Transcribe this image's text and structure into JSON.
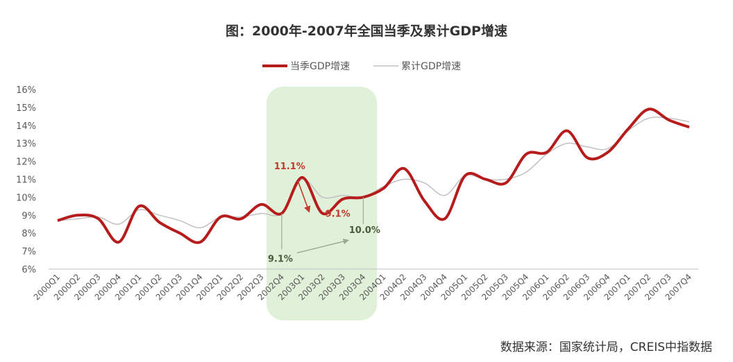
{
  "chart_data": {
    "type": "line",
    "title": "图：2000年-2007年全国当季及累计GDP增速",
    "categories": [
      "2000Q1",
      "2000Q2",
      "2000Q3",
      "2000Q4",
      "2001Q1",
      "2001Q2",
      "2001Q3",
      "2001Q4",
      "2002Q1",
      "2002Q2",
      "2002Q3",
      "2002Q4",
      "2003Q1",
      "2003Q2",
      "2003Q3",
      "2003Q4",
      "2004Q1",
      "2004Q2",
      "2004Q3",
      "2004Q4",
      "2005Q1",
      "2005Q2",
      "2005Q3",
      "2005Q4",
      "2006Q1",
      "2006Q2",
      "2006Q3",
      "2006Q4",
      "2007Q1",
      "2007Q2",
      "2007Q3",
      "2007Q4"
    ],
    "y_ticks": [
      "6%",
      "7%",
      "8%",
      "9%",
      "10%",
      "11%",
      "12%",
      "13%",
      "14%",
      "15%",
      "16%"
    ],
    "ylim": [
      6,
      16
    ],
    "legend_position": "top-center",
    "series": [
      {
        "name": "当季GDP增速",
        "color": "#b71c1c",
        "values": [
          8.7,
          9.0,
          8.8,
          7.5,
          9.5,
          8.6,
          8.0,
          7.5,
          8.9,
          8.8,
          9.6,
          9.1,
          11.1,
          9.1,
          9.9,
          10.0,
          10.5,
          11.6,
          9.8,
          8.8,
          11.2,
          11.0,
          10.8,
          12.4,
          12.5,
          13.7,
          12.2,
          12.5,
          13.8,
          14.9,
          14.3,
          13.9
        ]
      },
      {
        "name": "累计GDP增速",
        "color": "#c0c0c0",
        "values": [
          8.7,
          8.8,
          8.9,
          8.5,
          9.3,
          9.0,
          8.7,
          8.3,
          8.9,
          8.9,
          9.1,
          9.1,
          11.0,
          10.0,
          10.1,
          10.0,
          10.6,
          11.0,
          10.8,
          10.1,
          11.2,
          11.0,
          11.0,
          11.4,
          12.4,
          13.0,
          12.8,
          12.7,
          13.7,
          14.4,
          14.4,
          14.2
        ]
      }
    ],
    "annotations": [
      {
        "text": "11.1%",
        "color": "#c0392b"
      },
      {
        "text": "9.1%",
        "color": "#c0392b"
      },
      {
        "text": "9.1%",
        "color": "#4a5a3a"
      },
      {
        "text": "10.0%",
        "color": "#4a5a3a"
      }
    ],
    "highlight": {
      "from": "2002Q4",
      "to": "2003Q4",
      "color": "#dcefd2"
    }
  },
  "source": "数据来源：国家统计局，CREIS中指数据"
}
